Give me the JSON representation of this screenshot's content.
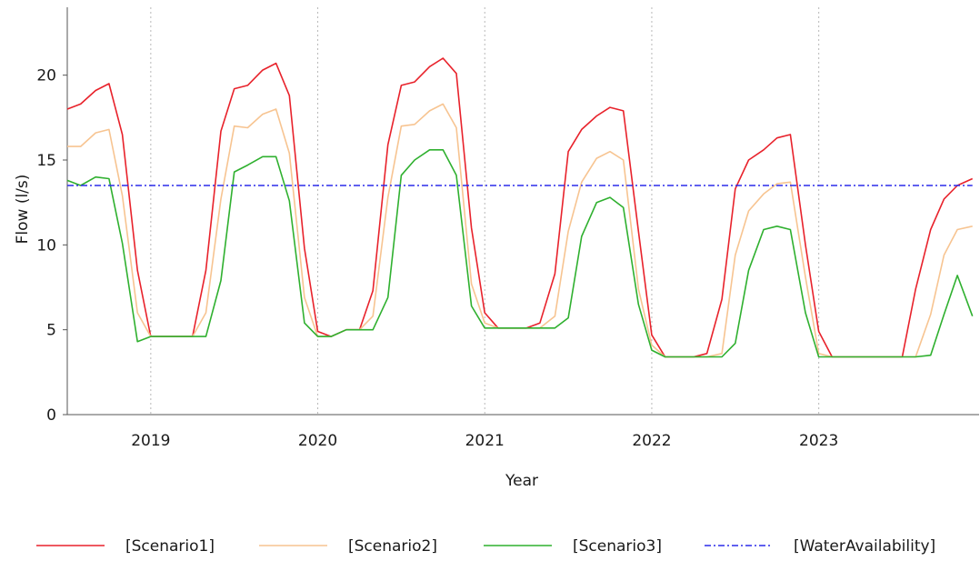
{
  "chart_data": {
    "type": "line",
    "title": "",
    "xlabel": "Year",
    "ylabel": "Flow (l/s)",
    "xlim": [
      2018.5,
      2023.96
    ],
    "ylim": [
      0,
      24
    ],
    "grid": true,
    "legend_position": "bottom",
    "x_ticks": [
      {
        "value": 2019,
        "label": "2019"
      },
      {
        "value": 2020,
        "label": "2020"
      },
      {
        "value": 2021,
        "label": "2021"
      },
      {
        "value": 2022,
        "label": "2022"
      },
      {
        "value": 2023,
        "label": "2023"
      }
    ],
    "y_ticks": [
      {
        "value": 0,
        "label": "0"
      },
      {
        "value": 5,
        "label": "5"
      },
      {
        "value": 10,
        "label": "10"
      },
      {
        "value": 15,
        "label": "15"
      },
      {
        "value": 20,
        "label": "20"
      }
    ],
    "x": [
      2018.5,
      2018.58,
      2018.67,
      2018.75,
      2018.83,
      2018.92,
      2019.0,
      2019.08,
      2019.17,
      2019.25,
      2019.33,
      2019.42,
      2019.5,
      2019.58,
      2019.67,
      2019.75,
      2019.83,
      2019.92,
      2020.0,
      2020.08,
      2020.17,
      2020.25,
      2020.33,
      2020.42,
      2020.5,
      2020.58,
      2020.67,
      2020.75,
      2020.83,
      2020.92,
      2021.0,
      2021.08,
      2021.17,
      2021.25,
      2021.33,
      2021.42,
      2021.5,
      2021.58,
      2021.67,
      2021.75,
      2021.83,
      2021.92,
      2022.0,
      2022.08,
      2022.17,
      2022.25,
      2022.33,
      2022.42,
      2022.5,
      2022.58,
      2022.67,
      2022.75,
      2022.83,
      2022.92,
      2023.0,
      2023.08,
      2023.17,
      2023.25,
      2023.33,
      2023.42,
      2023.5,
      2023.58,
      2023.67,
      2023.75,
      2023.83,
      2023.92
    ],
    "series": [
      {
        "name": "[Scenario1]",
        "color": "#e8222b",
        "values": [
          18.0,
          18.3,
          19.1,
          19.5,
          16.5,
          8.5,
          4.6,
          4.6,
          4.6,
          4.6,
          8.5,
          16.7,
          19.2,
          19.4,
          20.3,
          20.7,
          18.8,
          9.8,
          4.9,
          4.6,
          5.0,
          5.0,
          7.3,
          15.9,
          19.4,
          19.6,
          20.5,
          21.0,
          20.1,
          11.0,
          6.0,
          5.1,
          5.1,
          5.1,
          5.4,
          8.3,
          15.5,
          16.8,
          17.6,
          18.1,
          17.9,
          10.8,
          4.7,
          3.4,
          3.4,
          3.4,
          3.6,
          6.8,
          13.3,
          15.0,
          15.6,
          16.3,
          16.5,
          10.0,
          4.9,
          3.4,
          3.4,
          3.4,
          3.4,
          3.4,
          3.4,
          7.4,
          10.9,
          12.7,
          13.5,
          13.9
        ]
      },
      {
        "name": "[Scenario2]",
        "color": "#f7c491",
        "values": [
          15.8,
          15.8,
          16.6,
          16.8,
          12.9,
          6.0,
          4.6,
          4.6,
          4.6,
          4.6,
          6.0,
          12.7,
          17.0,
          16.9,
          17.7,
          18.0,
          15.4,
          6.9,
          4.6,
          4.6,
          5.0,
          5.0,
          5.8,
          12.8,
          17.0,
          17.1,
          17.9,
          18.3,
          16.9,
          7.7,
          5.4,
          5.1,
          5.1,
          5.1,
          5.1,
          5.8,
          10.8,
          13.7,
          15.1,
          15.5,
          15.0,
          7.4,
          4.1,
          3.4,
          3.4,
          3.4,
          3.4,
          3.6,
          9.4,
          12.0,
          13.0,
          13.6,
          13.7,
          8.1,
          3.6,
          3.4,
          3.4,
          3.4,
          3.4,
          3.4,
          3.4,
          3.4,
          5.9,
          9.4,
          10.9,
          11.1
        ]
      },
      {
        "name": "[Scenario3]",
        "color": "#2fb02f",
        "values": [
          13.8,
          13.5,
          14.0,
          13.9,
          10.1,
          4.3,
          4.6,
          4.6,
          4.6,
          4.6,
          4.6,
          7.9,
          14.3,
          14.7,
          15.2,
          15.2,
          12.6,
          5.4,
          4.6,
          4.6,
          5.0,
          5.0,
          5.0,
          6.9,
          14.1,
          15.0,
          15.6,
          15.6,
          14.1,
          6.4,
          5.1,
          5.1,
          5.1,
          5.1,
          5.1,
          5.1,
          5.7,
          10.5,
          12.5,
          12.8,
          12.2,
          6.5,
          3.8,
          3.4,
          3.4,
          3.4,
          3.4,
          3.4,
          4.2,
          8.5,
          10.9,
          11.1,
          10.9,
          6.0,
          3.4,
          3.4,
          3.4,
          3.4,
          3.4,
          3.4,
          3.4,
          3.4,
          3.5,
          5.9,
          8.2,
          5.8
        ]
      },
      {
        "name": "[WaterAvailability]",
        "color": "#2b2bea",
        "dashed": true,
        "values": [
          13.5,
          13.5,
          13.5,
          13.5,
          13.5,
          13.5,
          13.5,
          13.5,
          13.5,
          13.5,
          13.5,
          13.5,
          13.5,
          13.5,
          13.5,
          13.5,
          13.5,
          13.5,
          13.5,
          13.5,
          13.5,
          13.5,
          13.5,
          13.5,
          13.5,
          13.5,
          13.5,
          13.5,
          13.5,
          13.5,
          13.5,
          13.5,
          13.5,
          13.5,
          13.5,
          13.5,
          13.5,
          13.5,
          13.5,
          13.5,
          13.5,
          13.5,
          13.5,
          13.5,
          13.5,
          13.5,
          13.5,
          13.5,
          13.5,
          13.5,
          13.5,
          13.5,
          13.5,
          13.5,
          13.5,
          13.5,
          13.5,
          13.5,
          13.5,
          13.5,
          13.5,
          13.5,
          13.5,
          13.5,
          13.5,
          13.5
        ]
      }
    ]
  }
}
